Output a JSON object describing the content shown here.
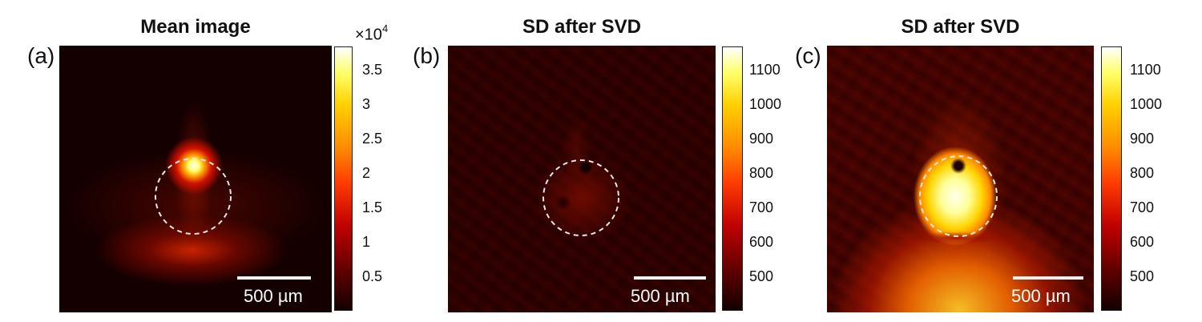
{
  "panels": [
    {
      "label": "(a)",
      "title": "Mean image",
      "scalebar": "500 µm",
      "colorbar": {
        "exponent_label": "×10",
        "exponent": "4",
        "ticks": [
          "3.5",
          "3",
          "2.5",
          "2",
          "1.5",
          "1",
          "0.5"
        ]
      }
    },
    {
      "label": "(b)",
      "title": "SD after SVD",
      "scalebar": "500 µm",
      "colorbar": {
        "ticks": [
          "1100",
          "1000",
          "900",
          "800",
          "700",
          "600",
          "500"
        ]
      }
    },
    {
      "label": "(c)",
      "title": "SD after SVD",
      "scalebar": "500 µm",
      "colorbar": {
        "ticks": [
          "1100",
          "1000",
          "900",
          "800",
          "700",
          "600",
          "500"
        ]
      }
    }
  ],
  "colormap": [
    "#140000",
    "#5a0000",
    "#c00000",
    "#ff3a00",
    "#ff8c00",
    "#ffd000",
    "#ffff66",
    "#ffffff"
  ],
  "circle_style": {
    "color": "#e8e8e8",
    "dash": "dashed"
  }
}
